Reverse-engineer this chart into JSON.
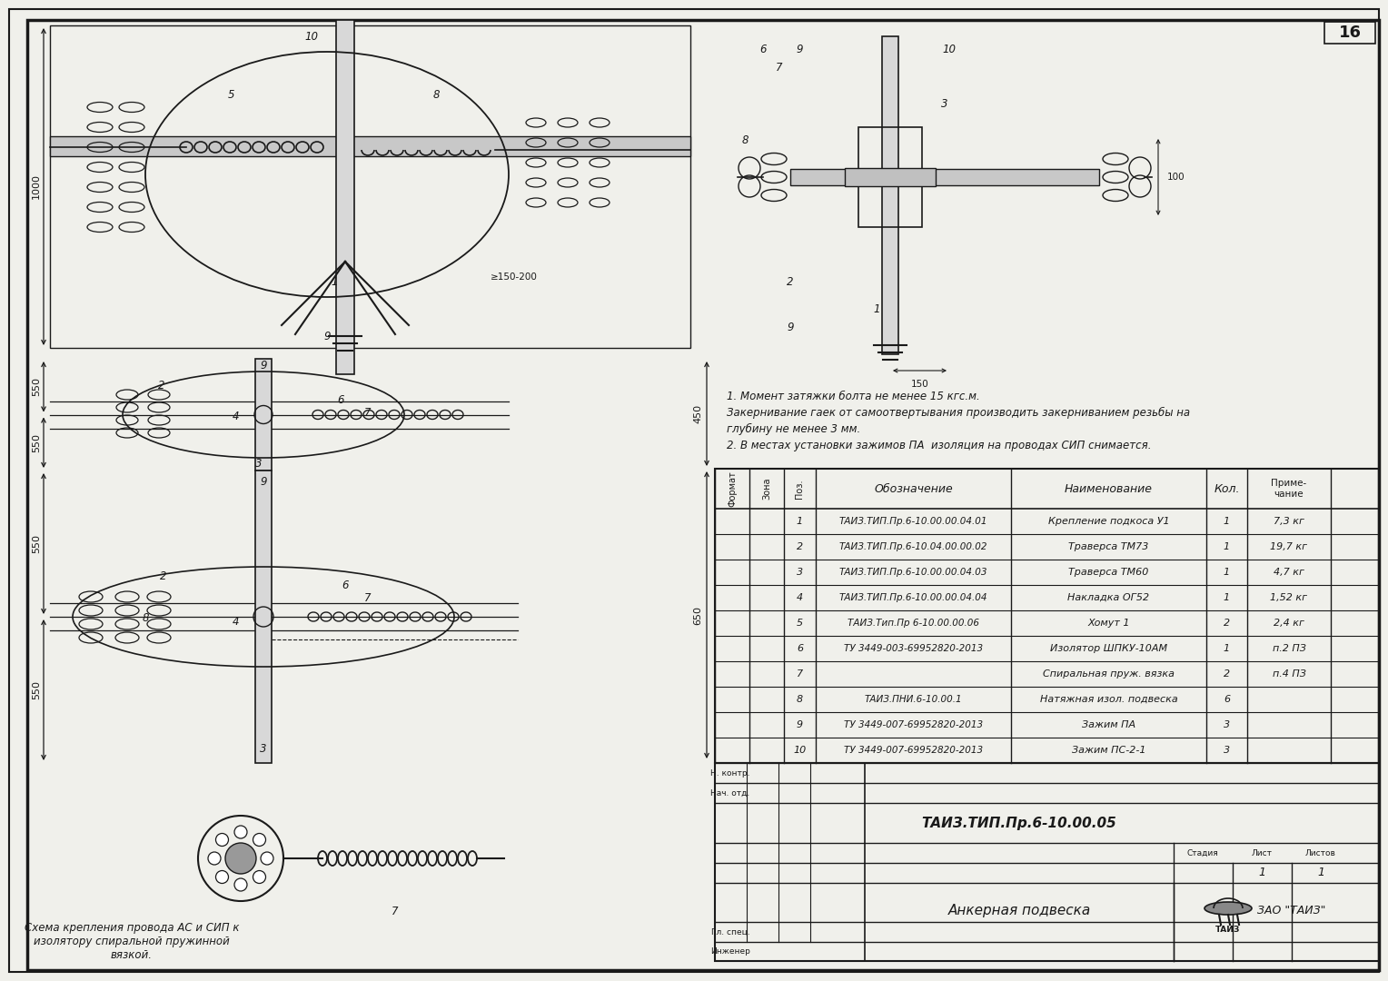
{
  "bg_color": "#f0f0eb",
  "line_color": "#1a1a1a",
  "page_number": "16",
  "doc_number": "ТАИЗ.ТИП.Пр.6-10.00.05",
  "drawing_name": "Анкерная подвеска",
  "company": "ЗАО \"ТАИЗ\"",
  "caption": "Схема крепления провода АС и СИП к\nизолятору спиральной пружинной\nвязкой.",
  "notes": [
    "1. Момент затяжки болта не менее 15 кгс.м.",
    "Закернивание гаек от самоотвертывания производить закерниванием резьбы на",
    "глубину не менее 3 мм.",
    "2. В местах установки зажимов ПА  изоляция на проводах СИП снимается."
  ],
  "dim_1000": "1000",
  "dim_550a": "550",
  "dim_550b": "550",
  "dim_450": "450",
  "dim_650": "650",
  "dim_150": "150",
  "dim_100": "100",
  "dim_150_200": "≥150-200",
  "table_col_widths": [
    38,
    38,
    35,
    215,
    215,
    45,
    92
  ],
  "table_headers": [
    "Формат",
    "Зона",
    "Поз.",
    "Обозначение",
    "Наименование",
    "Кол.",
    "Приме-\nчание"
  ],
  "table_rows": [
    [
      "",
      "",
      "1",
      "ТАИЗ.ТИП.Пр.6-10.00.00.04.01",
      "Крепление подкоса У1",
      "1",
      "7,3 кг"
    ],
    [
      "",
      "",
      "2",
      "ТАИЗ.ТИП.Пр.6-10.04.00.00.02",
      "Траверса ТМ73",
      "1",
      "19,7 кг"
    ],
    [
      "",
      "",
      "3",
      "ТАИЗ.ТИП.Пр.6-10.00.00.04.03",
      "Траверса ТМ60",
      "1",
      "4,7 кг"
    ],
    [
      "",
      "",
      "4",
      "ТАИЗ.ТИП.Пр.6-10.00.00.04.04",
      "Накладка ОГ52",
      "1",
      "1,52 кг"
    ],
    [
      "",
      "",
      "5",
      "ТАИЗ.Тип.Пр 6-10.00.00.06",
      "Хомут 1",
      "2",
      "2,4 кг"
    ],
    [
      "",
      "",
      "6",
      "ТУ 3449-003-69952820-2013",
      "Изолятор ШПКУ-10АМ",
      "1",
      "п.2 ПЗ"
    ],
    [
      "",
      "",
      "7",
      "",
      "Спиральная пруж. вязка",
      "2",
      "п.4 ПЗ"
    ],
    [
      "",
      "",
      "8",
      "ТАИЗ.ПНИ.6-10.00.1",
      "Натяжная изол. подвеска",
      "6",
      ""
    ],
    [
      "",
      "",
      "9",
      "ТУ 3449-007-69952820-2013",
      "Зажим ПА",
      "3",
      ""
    ],
    [
      "",
      "",
      "10",
      "ТУ 3449-007-69952820-2013",
      "Зажим ПС-2-1",
      "3",
      ""
    ]
  ]
}
